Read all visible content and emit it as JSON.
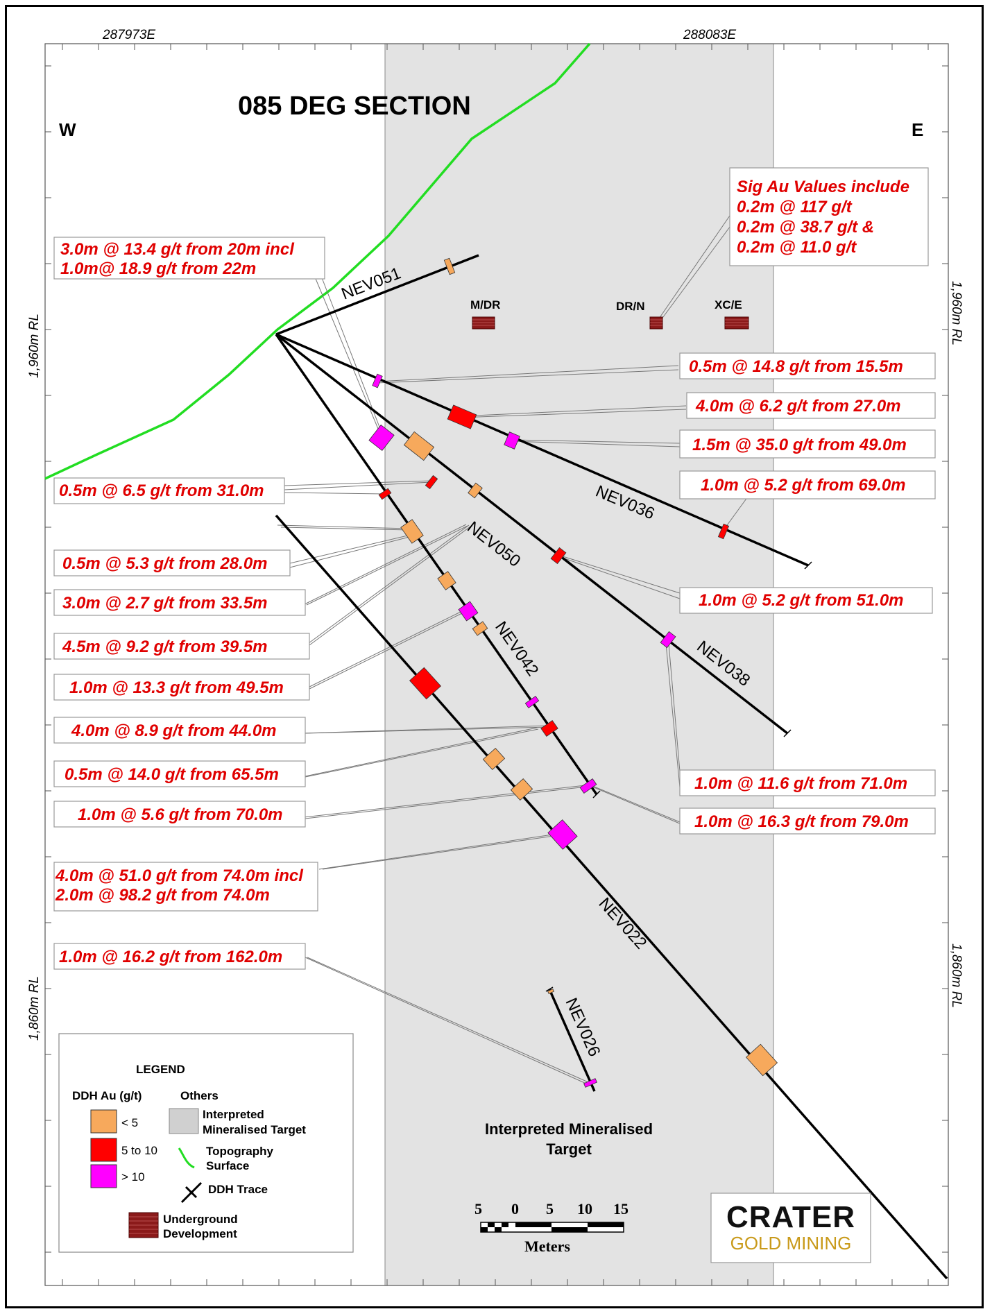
{
  "title": "085 DEG SECTION",
  "compass": {
    "west": "W",
    "east": "E"
  },
  "eastings": [
    "287973E",
    "288083E"
  ],
  "rl_labels": {
    "upper": "1,960m RL",
    "lower": "1,860m RL"
  },
  "target_label": [
    "Interpreted Mineralised",
    "Target"
  ],
  "drill_holes": [
    "NEV051",
    "NEV036",
    "NEV050",
    "NEV038",
    "NEV042",
    "NEV022",
    "NEV026"
  ],
  "development": [
    "M/DR",
    "DR/N",
    "XC/E"
  ],
  "sig_box": [
    "Sig Au Values include",
    "0.2m @ 117 g/t",
    "0.2m @ 38.7 g/t &",
    "0.2m @ 11.0 g/t"
  ],
  "intercepts_left": [
    [
      "3.0m @  13.4 g/t from 20m incl",
      "1.0m@ 18.9 g/t from 22m"
    ],
    [
      "0.5m @  6.5 g/t from 31.0m"
    ],
    [
      "0.5m @  5.3 g/t from 28.0m"
    ],
    [
      "3.0m @  2.7 g/t from 33.5m"
    ],
    [
      "4.5m @  9.2 g/t from 39.5m"
    ],
    [
      "1.0m @ 13.3 g/t from 49.5m"
    ],
    [
      "4.0m @  8.9 g/t from 44.0m"
    ],
    [
      "0.5m @  14.0 g/t from 65.5m"
    ],
    [
      "1.0m @  5.6 g/t from 70.0m"
    ],
    [
      "4.0m @  51.0 g/t from 74.0m incl",
      "2.0m @ 98.2 g/t from 74.0m"
    ],
    [
      "1.0m @  16.2 g/t from 162.0m"
    ]
  ],
  "intercepts_right": [
    [
      "0.5m @  14.8 g/t from 15.5m"
    ],
    [
      "4.0m @  6.2 g/t from 27.0m"
    ],
    [
      "1.5m @  35.0 g/t from 49.0m"
    ],
    [
      "1.0m @  5.2 g/t from 69.0m"
    ],
    [
      "1.0m @  5.2 g/t from 51.0m"
    ],
    [
      "1.0m @  11.6 g/t from 71.0m"
    ],
    [
      "1.0m @  16.3 g/t from 79.0m"
    ]
  ],
  "legend": {
    "title": "LEGEND",
    "au_heading": "DDH Au (g/t)",
    "others_heading": "Others",
    "au_classes": [
      {
        "label": "< 5",
        "color": "#f7a95c"
      },
      {
        "label": "5 to 10",
        "color": "#ff0000"
      },
      {
        "label": "> 10",
        "color": "#ff00ff"
      }
    ],
    "target": [
      "Interpreted",
      "Mineralised Target"
    ],
    "topo": [
      "Topography",
      "Surface"
    ],
    "ddh": "DDH Trace",
    "ug": [
      "Underground",
      "Development"
    ]
  },
  "scale": {
    "ticks": [
      "5",
      "0",
      "5",
      "10",
      "15"
    ],
    "unit": "Meters"
  },
  "logo": {
    "top": "CRATER",
    "bottom": "GOLD MINING"
  },
  "colors": {
    "topography": "#22dd22",
    "target": "#e3e3e3",
    "annotation": "#e00000",
    "logo_gold": "#c99a1a"
  }
}
